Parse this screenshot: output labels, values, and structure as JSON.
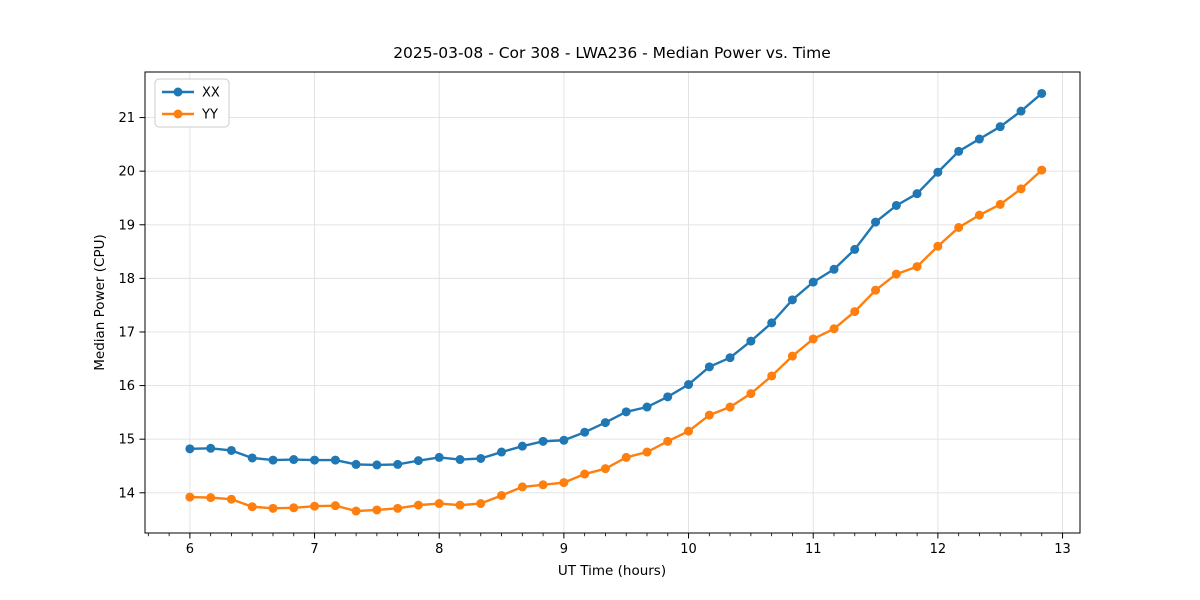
{
  "chart_data": {
    "type": "line",
    "title": "2025-03-08 - Cor 308 - LWA236 - Median Power vs. Time",
    "xlabel": "UT Time (hours)",
    "ylabel": "Median Power (CPU)",
    "xlim": [
      5.64,
      13.14
    ],
    "ylim": [
      13.25,
      21.85
    ],
    "xticks": [
      6,
      7,
      8,
      9,
      10,
      11,
      12,
      13
    ],
    "yticks": [
      14,
      15,
      16,
      17,
      18,
      19,
      20,
      21
    ],
    "x_minor_tick_step_hours": 0.166667,
    "grid": true,
    "legend_position": "upper left",
    "x": [
      6.0,
      6.167,
      6.333,
      6.5,
      6.667,
      6.833,
      7.0,
      7.167,
      7.333,
      7.5,
      7.667,
      7.833,
      8.0,
      8.167,
      8.333,
      8.5,
      8.667,
      8.833,
      9.0,
      9.167,
      9.333,
      9.5,
      9.667,
      9.833,
      10.0,
      10.167,
      10.333,
      10.5,
      10.667,
      10.833,
      11.0,
      11.167,
      11.333,
      11.5,
      11.667,
      11.833,
      12.0,
      12.167,
      12.333,
      12.5,
      12.667,
      12.833
    ],
    "series": [
      {
        "name": "XX",
        "color": "#1f77b4",
        "values": [
          14.82,
          14.83,
          14.79,
          14.65,
          14.61,
          14.62,
          14.61,
          14.61,
          14.53,
          14.52,
          14.53,
          14.6,
          14.66,
          14.62,
          14.64,
          14.76,
          14.87,
          14.96,
          14.98,
          15.13,
          15.31,
          15.51,
          15.6,
          15.79,
          16.02,
          16.35,
          16.52,
          16.83,
          17.17,
          17.6,
          17.93,
          18.17,
          18.54,
          19.05,
          19.36,
          19.58,
          19.98,
          20.37,
          20.6,
          20.83,
          21.12,
          21.45
        ]
      },
      {
        "name": "YY",
        "color": "#ff7f0e",
        "values": [
          13.92,
          13.91,
          13.88,
          13.74,
          13.71,
          13.72,
          13.75,
          13.76,
          13.66,
          13.68,
          13.71,
          13.77,
          13.8,
          13.77,
          13.8,
          13.95,
          14.11,
          14.15,
          14.19,
          14.35,
          14.45,
          14.66,
          14.76,
          14.96,
          15.15,
          15.45,
          15.6,
          15.85,
          16.18,
          16.55,
          16.87,
          17.06,
          17.38,
          17.78,
          18.08,
          18.22,
          18.6,
          18.95,
          19.18,
          19.38,
          19.67,
          20.02
        ]
      }
    ]
  },
  "style": {
    "grid_color": "#e0e0e0",
    "spine_color": "#000000",
    "tick_color": "#000000",
    "background": "#ffffff",
    "legend_border": "#cccccc",
    "legend_background": "#ffffff"
  }
}
